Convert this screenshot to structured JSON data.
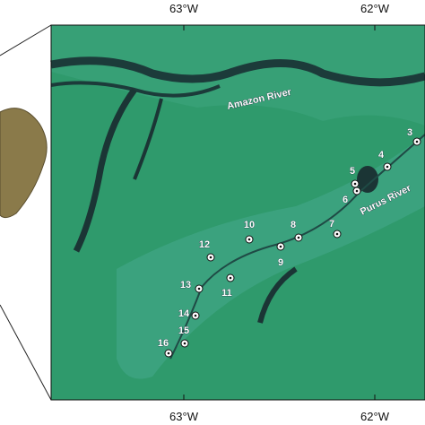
{
  "map": {
    "top_ticks": [
      "63°W",
      "62°W"
    ],
    "bottom_ticks": [
      "63°W",
      "62°W"
    ],
    "rivers": [
      "Amazon River",
      "Purus River"
    ],
    "sites": [
      "3",
      "4",
      "5",
      "6",
      "7",
      "8",
      "9",
      "10",
      "11",
      "12",
      "13",
      "14",
      "15",
      "16"
    ]
  }
}
